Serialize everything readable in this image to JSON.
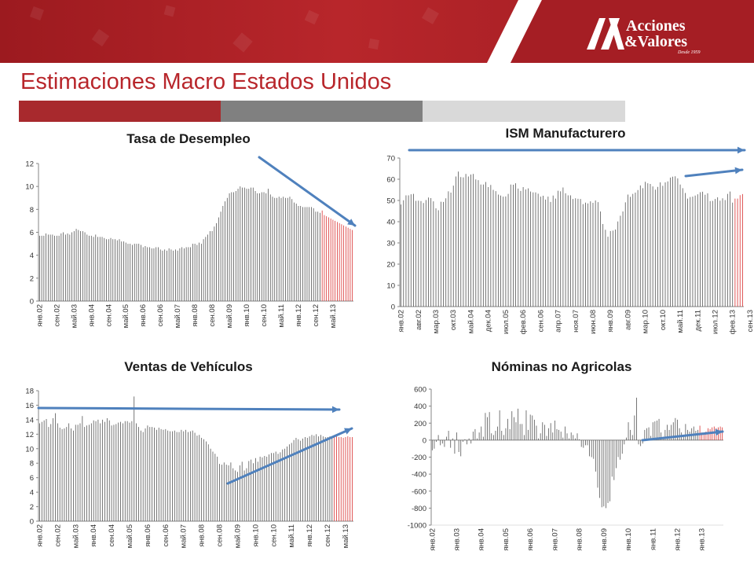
{
  "slide": {
    "title": "Estimaciones Macro Estados Unidos"
  },
  "logo": {
    "line1": "Acciones",
    "line2": "&Valores",
    "tagline": "Desde 1959"
  },
  "colors": {
    "brand_red": "#b8262b",
    "bar_gray": "#8a8a8a",
    "bar_light": "#d9d9d9",
    "series_dark": "#555555",
    "series_forecast": "#d93030",
    "arrow_blue": "#4f81bd"
  },
  "icons": {
    "logo": "av-monogram-icon"
  },
  "chart_data": [
    {
      "type": "bar",
      "title": "Tasa de Desempleo",
      "ylim": [
        0,
        12
      ],
      "yticks": [
        0,
        2,
        4,
        6,
        8,
        10,
        12
      ],
      "xtick_labels": [
        "янв.02",
        "сен.02",
        "май.03",
        "янв.04",
        "сен.04",
        "май.05",
        "янв.06",
        "сен.06",
        "май.07",
        "янв.08",
        "сен.08",
        "май.09",
        "янв.10",
        "сен.10",
        "май.11",
        "янв.12",
        "сен.12",
        "май.13"
      ],
      "start": "янв.02",
      "step_months": 1,
      "forecast_from_index": 131,
      "values": [
        5.7,
        5.7,
        5.7,
        5.9,
        5.8,
        5.8,
        5.8,
        5.7,
        5.7,
        5.7,
        5.9,
        6.0,
        5.8,
        5.9,
        5.8,
        6.0,
        6.1,
        6.3,
        6.2,
        6.1,
        6.1,
        6.0,
        5.8,
        5.7,
        5.7,
        5.6,
        5.8,
        5.6,
        5.6,
        5.6,
        5.5,
        5.4,
        5.4,
        5.5,
        5.4,
        5.4,
        5.3,
        5.4,
        5.2,
        5.2,
        5.1,
        5.0,
        5.0,
        4.9,
        5.0,
        5.0,
        5.0,
        4.9,
        4.7,
        4.8,
        4.7,
        4.7,
        4.6,
        4.6,
        4.7,
        4.7,
        4.5,
        4.4,
        4.5,
        4.4,
        4.6,
        4.5,
        4.4,
        4.5,
        4.4,
        4.6,
        4.7,
        4.6,
        4.7,
        4.7,
        4.7,
        5.0,
        5.0,
        4.9,
        5.1,
        5.0,
        5.4,
        5.6,
        5.8,
        6.1,
        6.1,
        6.5,
        6.8,
        7.3,
        7.8,
        8.3,
        8.7,
        9.0,
        9.4,
        9.5,
        9.5,
        9.6,
        9.8,
        10.0,
        9.9,
        9.9,
        9.8,
        9.8,
        9.9,
        9.9,
        9.6,
        9.4,
        9.4,
        9.5,
        9.5,
        9.4,
        9.8,
        9.3,
        9.1,
        9.0,
        9.0,
        9.1,
        9.0,
        9.1,
        9.0,
        9.0,
        9.1,
        8.9,
        8.6,
        8.5,
        8.3,
        8.3,
        8.2,
        8.2,
        8.2,
        8.2,
        8.2,
        8.1,
        7.8,
        7.8,
        7.7,
        7.9,
        7.5,
        7.4,
        7.3,
        7.2,
        7.1,
        7.0,
        6.9,
        6.8,
        6.7,
        6.6,
        6.5,
        6.4,
        6.3,
        6.2
      ]
    },
    {
      "type": "bar",
      "title": "ISM Manufacturero",
      "ylim": [
        0,
        70
      ],
      "yticks": [
        0,
        10,
        20,
        30,
        40,
        50,
        60,
        70
      ],
      "xtick_labels": [
        "янв.02",
        "авг.02",
        "мар.03",
        "окт.03",
        "май.04",
        "дек.04",
        "июл.05",
        "фев.06",
        "сен.06",
        "апр.07",
        "ноя.07",
        "июн.08",
        "янв.09",
        "авг.09",
        "мар.10",
        "окт.10",
        "май.11",
        "дек.11",
        "июл.12",
        "фев.13",
        "сен.13"
      ],
      "start": "янв.02",
      "step_months": 1,
      "forecast_from_index": 134,
      "values": [
        48.1,
        50.1,
        52.4,
        52.4,
        52.9,
        53.1,
        49.8,
        49.9,
        49.7,
        48.8,
        50.2,
        51.4,
        51.1,
        49.6,
        46.3,
        45.4,
        49.4,
        49.3,
        51.0,
        54.3,
        53.7,
        57.0,
        61.3,
        63.6,
        61.0,
        60.9,
        62.5,
        61.3,
        62.2,
        62.5,
        59.9,
        59.6,
        57.5,
        57.5,
        58.7,
        56.3,
        57.3,
        55.0,
        54.4,
        52.8,
        52.3,
        51.8,
        51.9,
        53.1,
        57.5,
        57.4,
        58.1,
        55.6,
        54.5,
        56.3,
        55.2,
        55.7,
        54.2,
        53.8,
        53.8,
        53.2,
        51.8,
        52.2,
        50.4,
        51.8,
        49.3,
        52.3,
        50.9,
        54.6,
        54.3,
        56.1,
        53.4,
        52.4,
        52.4,
        50.7,
        51.0,
        50.8,
        50.7,
        48.3,
        49.0,
        48.6,
        49.6,
        48.9,
        50.0,
        49.2,
        44.8,
        38.9,
        36.2,
        32.9,
        35.6,
        35.8,
        36.3,
        40.1,
        42.8,
        44.8,
        49.1,
        52.8,
        51.7,
        53.1,
        53.7,
        54.9,
        57.1,
        55.8,
        58.8,
        58.1,
        57.8,
        56.6,
        55.1,
        56.4,
        58.5,
        56.9,
        58.5,
        59.0,
        60.8,
        61.2,
        61.4,
        60.4,
        57.5,
        55.8,
        53.5,
        50.9,
        51.6,
        51.8,
        52.3,
        52.9,
        53.9,
        54.1,
        52.7,
        53.4,
        49.7,
        49.8,
        50.7,
        51.5,
        49.9,
        51.0,
        50.2,
        53.1,
        54.2,
        49.0,
        50.9,
        50.9,
        52.5,
        53.0
      ]
    },
    {
      "type": "bar",
      "title": "Ventas de Vehículos",
      "ylim": [
        0,
        18
      ],
      "yticks": [
        0,
        2,
        4,
        6,
        8,
        10,
        12,
        14,
        16,
        18
      ],
      "xtick_labels": [
        "янв.02",
        "сен.02",
        "май.03",
        "янв.04",
        "сен.04",
        "май.05",
        "янв.06",
        "сен.06",
        "май.07",
        "янв.08",
        "сен.08",
        "май.09",
        "янв.10",
        "сен.10",
        "май.11",
        "янв.12",
        "сен.12",
        "май.13"
      ],
      "start": "янв.02",
      "step_months": 1,
      "forecast_from_index": 131,
      "values": [
        13.5,
        13.7,
        13.9,
        14.1,
        13.0,
        13.4,
        14.2,
        14.9,
        13.5,
        12.9,
        12.7,
        12.8,
        13.0,
        13.5,
        12.8,
        12.5,
        13.3,
        13.3,
        13.5,
        14.5,
        13.0,
        13.2,
        13.3,
        13.5,
        13.9,
        13.8,
        14.0,
        13.5,
        14.0,
        13.7,
        14.2,
        13.9,
        13.2,
        13.3,
        13.4,
        13.6,
        13.7,
        13.5,
        13.8,
        13.8,
        13.6,
        13.8,
        17.2,
        13.5,
        13.0,
        12.5,
        12.3,
        12.8,
        13.2,
        13.0,
        13.0,
        12.9,
        12.6,
        12.9,
        12.7,
        12.6,
        12.7,
        12.5,
        12.4,
        12.4,
        12.5,
        12.3,
        12.3,
        12.6,
        12.4,
        12.6,
        12.3,
        12.4,
        12.5,
        12.2,
        11.8,
        11.9,
        11.5,
        11.3,
        11.0,
        10.6,
        10.0,
        9.6,
        9.3,
        8.9,
        7.9,
        7.8,
        8.1,
        7.8,
        7.7,
        8.1,
        7.3,
        7.0,
        6.8,
        7.7,
        8.2,
        7.0,
        7.3,
        8.3,
        8.5,
        8.0,
        8.7,
        8.2,
        8.9,
        8.8,
        9.0,
        8.9,
        9.2,
        9.4,
        9.4,
        9.6,
        9.3,
        9.5,
        9.9,
        10.0,
        10.3,
        10.6,
        10.8,
        11.2,
        11.5,
        11.3,
        11.1,
        11.4,
        11.6,
        11.5,
        11.7,
        11.9,
        11.8,
        12.0,
        11.7,
        11.9,
        11.7,
        11.6,
        11.6,
        11.7,
        11.6,
        11.6,
        11.7,
        11.6,
        11.6,
        11.5,
        11.6,
        11.7,
        11.6,
        11.6
      ]
    },
    {
      "type": "bar",
      "title": "Nóminas no Agricolas",
      "ylim": [
        -1000,
        600
      ],
      "yticks": [
        -1000,
        -800,
        -600,
        -400,
        -200,
        0,
        200,
        400,
        600
      ],
      "xtick_labels": [
        "янв.02",
        "янв.03",
        "янв.04",
        "янв.05",
        "янв.06",
        "янв.07",
        "янв.08",
        "янв.09",
        "янв.10",
        "янв.11",
        "янв.12",
        "янв.13"
      ],
      "start": "янв.02",
      "step_months": 1,
      "forecast_from_index": 131,
      "values": [
        -120,
        -100,
        -20,
        60,
        -60,
        -40,
        -80,
        40,
        110,
        -90,
        20,
        -160,
        90,
        -140,
        -190,
        -20,
        10,
        -50,
        20,
        -40,
        100,
        130,
        20,
        90,
        160,
        40,
        320,
        270,
        330,
        80,
        60,
        110,
        160,
        350,
        110,
        60,
        140,
        250,
        130,
        340,
        270,
        210,
        370,
        190,
        190,
        60,
        350,
        120,
        300,
        290,
        240,
        170,
        20,
        80,
        210,
        180,
        50,
        140,
        200,
        90,
        230,
        130,
        120,
        100,
        30,
        160,
        80,
        20,
        90,
        60,
        20,
        80,
        10,
        -80,
        -90,
        -60,
        -60,
        -190,
        -200,
        -220,
        -370,
        -560,
        -680,
        -790,
        -780,
        -800,
        -740,
        -720,
        -430,
        -470,
        -330,
        -200,
        -230,
        -160,
        -50,
        30,
        210,
        120,
        60,
        290,
        500,
        -50,
        -70,
        -40,
        120,
        140,
        150,
        50,
        210,
        220,
        230,
        250,
        90,
        40,
        120,
        180,
        120,
        180,
        210,
        260,
        240,
        140,
        90,
        50,
        190,
        120,
        100,
        140,
        160,
        110,
        120,
        170,
        90,
        70,
        100,
        140,
        130,
        150,
        160,
        140,
        150,
        160,
        150
      ]
    }
  ]
}
